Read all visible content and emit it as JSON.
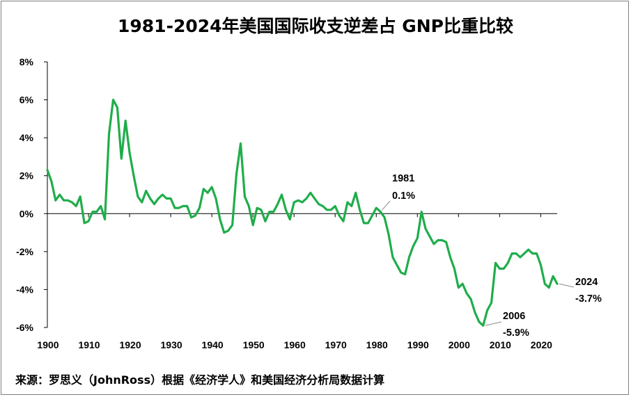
{
  "chart_data": {
    "type": "line",
    "title": "1981-2024年美国国际收支逆差占 GNP比重比较",
    "source": "来源：罗思义（JohnRoss）根据《经济学人》和美国经济分析局数据计算",
    "xlabel": "",
    "ylabel": "",
    "xlim": [
      1900,
      2024
    ],
    "ylim": [
      -6,
      8
    ],
    "x_ticks": [
      "1900",
      "1910",
      "1920",
      "1930",
      "1940",
      "1950",
      "1960",
      "1970",
      "1980",
      "1990",
      "2000",
      "2010",
      "2020"
    ],
    "y_ticks": [
      "8%",
      "6%",
      "4%",
      "2%",
      "0%",
      "-2%",
      "-4%",
      "-6%"
    ],
    "grid": false,
    "color": "#1fad4b",
    "series": [
      {
        "x": [
          1900,
          1901,
          1902,
          1903,
          1904,
          1905,
          1906,
          1907,
          1908,
          1909,
          1910,
          1911,
          1912,
          1913,
          1914,
          1915,
          1916,
          1917,
          1918,
          1919,
          1920,
          1921,
          1922,
          1923,
          1924,
          1925,
          1926,
          1927,
          1928,
          1929,
          1930,
          1931,
          1932,
          1933,
          1934,
          1935,
          1936,
          1937,
          1938,
          1939,
          1940,
          1941,
          1942,
          1943,
          1944,
          1945,
          1946,
          1947,
          1948,
          1949,
          1950,
          1951,
          1952,
          1953,
          1954,
          1955,
          1956,
          1957,
          1958,
          1959,
          1960,
          1961,
          1962,
          1963,
          1964,
          1965,
          1966,
          1967,
          1968,
          1969,
          1970,
          1971,
          1972,
          1973,
          1974,
          1975,
          1976,
          1977,
          1978,
          1979,
          1980,
          1981,
          1982,
          1983,
          1984,
          1985,
          1986,
          1987,
          1988,
          1989,
          1990,
          1991,
          1992,
          1993,
          1994,
          1995,
          1996,
          1997,
          1998,
          1999,
          2000,
          2001,
          2002,
          2003,
          2004,
          2005,
          2006,
          2007,
          2008,
          2009,
          2010,
          2011,
          2012,
          2013,
          2014,
          2015,
          2016,
          2017,
          2018,
          2019,
          2020,
          2021,
          2022,
          2023,
          2024
        ],
        "values": [
          2.3,
          1.7,
          0.7,
          1.0,
          0.7,
          0.7,
          0.6,
          0.4,
          0.9,
          -0.5,
          -0.4,
          0.1,
          0.1,
          0.4,
          -0.3,
          4.2,
          6.0,
          5.6,
          2.9,
          4.9,
          3.2,
          2.0,
          0.9,
          0.6,
          1.2,
          0.8,
          0.5,
          0.8,
          1.0,
          0.8,
          0.8,
          0.3,
          0.3,
          0.4,
          0.4,
          -0.2,
          -0.1,
          0.3,
          1.3,
          1.1,
          1.4,
          0.8,
          -0.3,
          -1.0,
          -0.9,
          -0.6,
          2.1,
          3.7,
          0.9,
          0.4,
          -0.6,
          0.3,
          0.2,
          -0.4,
          0.1,
          0.1,
          0.5,
          1.0,
          0.2,
          -0.3,
          0.6,
          0.7,
          0.6,
          0.8,
          1.1,
          0.8,
          0.5,
          0.4,
          0.2,
          0.2,
          0.4,
          -0.1,
          -0.4,
          0.6,
          0.4,
          1.1,
          0.2,
          -0.5,
          -0.5,
          -0.1,
          0.3,
          0.1,
          -0.2,
          -1.1,
          -2.3,
          -2.7,
          -3.1,
          -3.2,
          -2.3,
          -1.7,
          -1.3,
          0.1,
          -0.8,
          -1.2,
          -1.6,
          -1.4,
          -1.4,
          -1.5,
          -2.3,
          -2.9,
          -3.9,
          -3.7,
          -4.2,
          -4.5,
          -5.2,
          -5.7,
          -5.9,
          -5.1,
          -4.7,
          -2.6,
          -2.9,
          -2.9,
          -2.6,
          -2.1,
          -2.1,
          -2.3,
          -2.1,
          -1.9,
          -2.1,
          -2.1,
          -2.7,
          -3.7,
          -3.9,
          -3.3,
          -3.7
        ]
      }
    ],
    "annotations": [
      {
        "x": 1981,
        "y": 0.1,
        "year": "1981",
        "value": "0.1%"
      },
      {
        "x": 2006,
        "y": -5.9,
        "year": "2006",
        "value": "-5.9%"
      },
      {
        "x": 2024,
        "y": -3.7,
        "year": "2024",
        "value": "-3.7%"
      }
    ]
  }
}
